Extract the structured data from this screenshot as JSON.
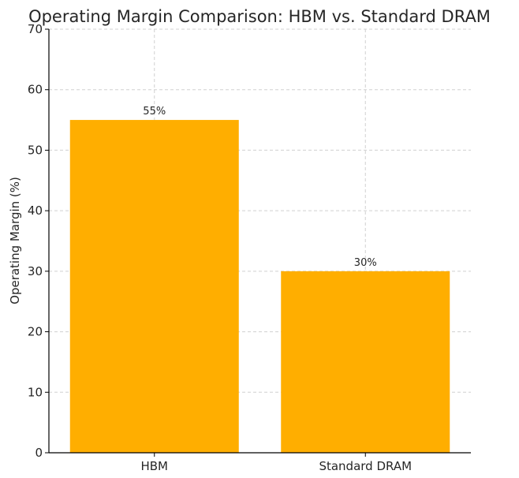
{
  "chart_data": {
    "type": "bar",
    "title": "Operating Margin Comparison: HBM vs. Standard DRAM",
    "xlabel": "",
    "ylabel": "Operating Margin (%)",
    "categories": [
      "HBM",
      "Standard DRAM"
    ],
    "values": [
      55,
      30
    ],
    "data_labels": [
      "55%",
      "30%"
    ],
    "ylim": [
      0,
      70
    ],
    "yticks": [
      0,
      10,
      20,
      30,
      40,
      50,
      60,
      70
    ],
    "grid": true,
    "bar_color": "#FFAE00"
  }
}
